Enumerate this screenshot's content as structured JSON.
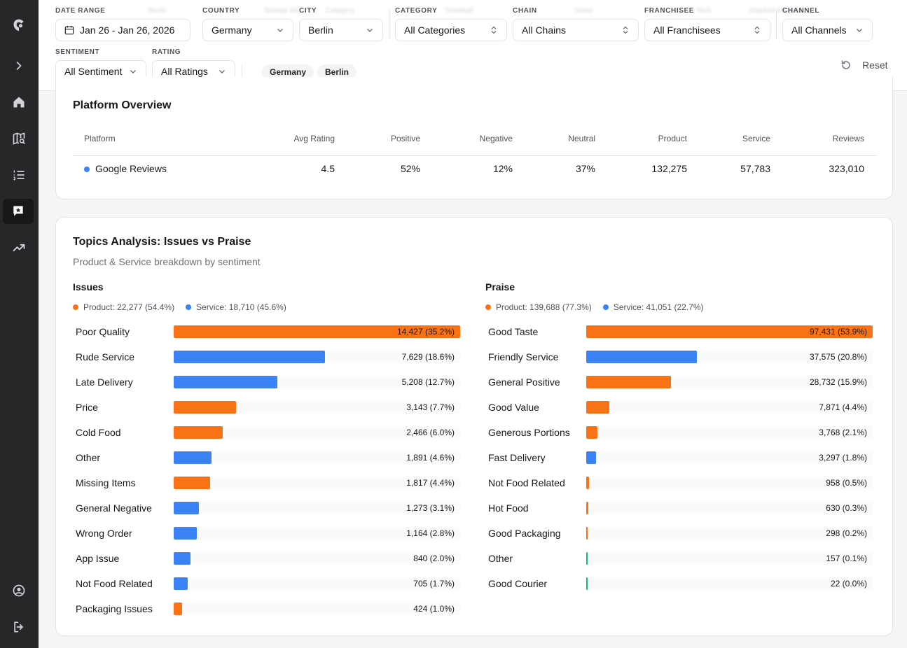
{
  "filters": {
    "date_range": {
      "label": "DATE RANGE",
      "value": "Jan 26 - Jan 26, 2026"
    },
    "country": {
      "label": "COUNTRY",
      "value": "Germany"
    },
    "city": {
      "label": "CITY",
      "value": "Berlin"
    },
    "category": {
      "label": "CATEGORY",
      "value": "All Categories"
    },
    "chain": {
      "label": "CHAIN",
      "value": "All Chains"
    },
    "franchisee": {
      "label": "FRANCHISEE",
      "value": "All Franchisees"
    },
    "channel": {
      "label": "CHANNEL",
      "value": "All Channels"
    },
    "sentiment": {
      "label": "SENTIMENT",
      "value": "All Sentiment"
    },
    "rating": {
      "label": "RATING",
      "value": "All Ratings"
    },
    "chips": [
      "Germany",
      "Berlin"
    ],
    "reset_label": "Reset"
  },
  "platform_overview": {
    "title": "Platform Overview",
    "columns": [
      "Platform",
      "Avg Rating",
      "Positive",
      "Negative",
      "Neutral",
      "Product",
      "Service",
      "Reviews"
    ],
    "rows": [
      {
        "platform": "Google Reviews",
        "avg_rating": "4.5",
        "positive": "52%",
        "negative": "12%",
        "neutral": "37%",
        "product": "132,275",
        "service": "57,783",
        "reviews": "323,010"
      }
    ]
  },
  "topics": {
    "title": "Topics Analysis: Issues vs Praise",
    "subtitle": "Product & Service breakdown by sentiment",
    "colors": {
      "product": "#f97316",
      "service": "#3b82f6",
      "other": "#10b981"
    },
    "issues": {
      "heading": "Issues",
      "legend_product": "Product: 22,277 (54.4%)",
      "legend_service": "Service: 18,710 (45.6%)",
      "items": [
        {
          "label": "Poor Quality",
          "value": "14,427 (35.2%)",
          "share": 1.0,
          "type": "product"
        },
        {
          "label": "Rude Service",
          "value": "7,629 (18.6%)",
          "share": 0.529,
          "type": "service"
        },
        {
          "label": "Late Delivery",
          "value": "5,208 (12.7%)",
          "share": 0.361,
          "type": "service"
        },
        {
          "label": "Price",
          "value": "3,143 (7.7%)",
          "share": 0.218,
          "type": "product"
        },
        {
          "label": "Cold Food",
          "value": "2,466 (6.0%)",
          "share": 0.171,
          "type": "product"
        },
        {
          "label": "Other",
          "value": "1,891 (4.6%)",
          "share": 0.131,
          "type": "service"
        },
        {
          "label": "Missing Items",
          "value": "1,817 (4.4%)",
          "share": 0.126,
          "type": "product"
        },
        {
          "label": "General Negative",
          "value": "1,273 (3.1%)",
          "share": 0.088,
          "type": "service"
        },
        {
          "label": "Wrong Order",
          "value": "1,164 (2.8%)",
          "share": 0.081,
          "type": "service"
        },
        {
          "label": "App Issue",
          "value": "840 (2.0%)",
          "share": 0.058,
          "type": "service"
        },
        {
          "label": "Not Food Related",
          "value": "705 (1.7%)",
          "share": 0.049,
          "type": "service"
        },
        {
          "label": "Packaging Issues",
          "value": "424 (1.0%)",
          "share": 0.029,
          "type": "product"
        }
      ]
    },
    "praise": {
      "heading": "Praise",
      "legend_product": "Product: 139,688 (77.3%)",
      "legend_service": "Service: 41,051 (22.7%)",
      "items": [
        {
          "label": "Good Taste",
          "value": "97,431 (53.9%)",
          "share": 1.0,
          "type": "product"
        },
        {
          "label": "Friendly Service",
          "value": "37,575 (20.8%)",
          "share": 0.386,
          "type": "service"
        },
        {
          "label": "General Positive",
          "value": "28,732 (15.9%)",
          "share": 0.295,
          "type": "product"
        },
        {
          "label": "Good Value",
          "value": "7,871 (4.4%)",
          "share": 0.081,
          "type": "product"
        },
        {
          "label": "Generous Portions",
          "value": "3,768 (2.1%)",
          "share": 0.039,
          "type": "product"
        },
        {
          "label": "Fast Delivery",
          "value": "3,297 (1.8%)",
          "share": 0.034,
          "type": "service"
        },
        {
          "label": "Not Food Related",
          "value": "958 (0.5%)",
          "share": 0.01,
          "type": "product"
        },
        {
          "label": "Hot Food",
          "value": "630 (0.3%)",
          "share": 0.0065,
          "type": "product"
        },
        {
          "label": "Good Packaging",
          "value": "298 (0.2%)",
          "share": 0.003,
          "type": "product"
        },
        {
          "label": "Other",
          "value": "157 (0.1%)",
          "share": 0.0016,
          "type": "other"
        },
        {
          "label": "Good Courier",
          "value": "22 (0.0%)",
          "share": 0.0002,
          "type": "other"
        }
      ]
    }
  }
}
